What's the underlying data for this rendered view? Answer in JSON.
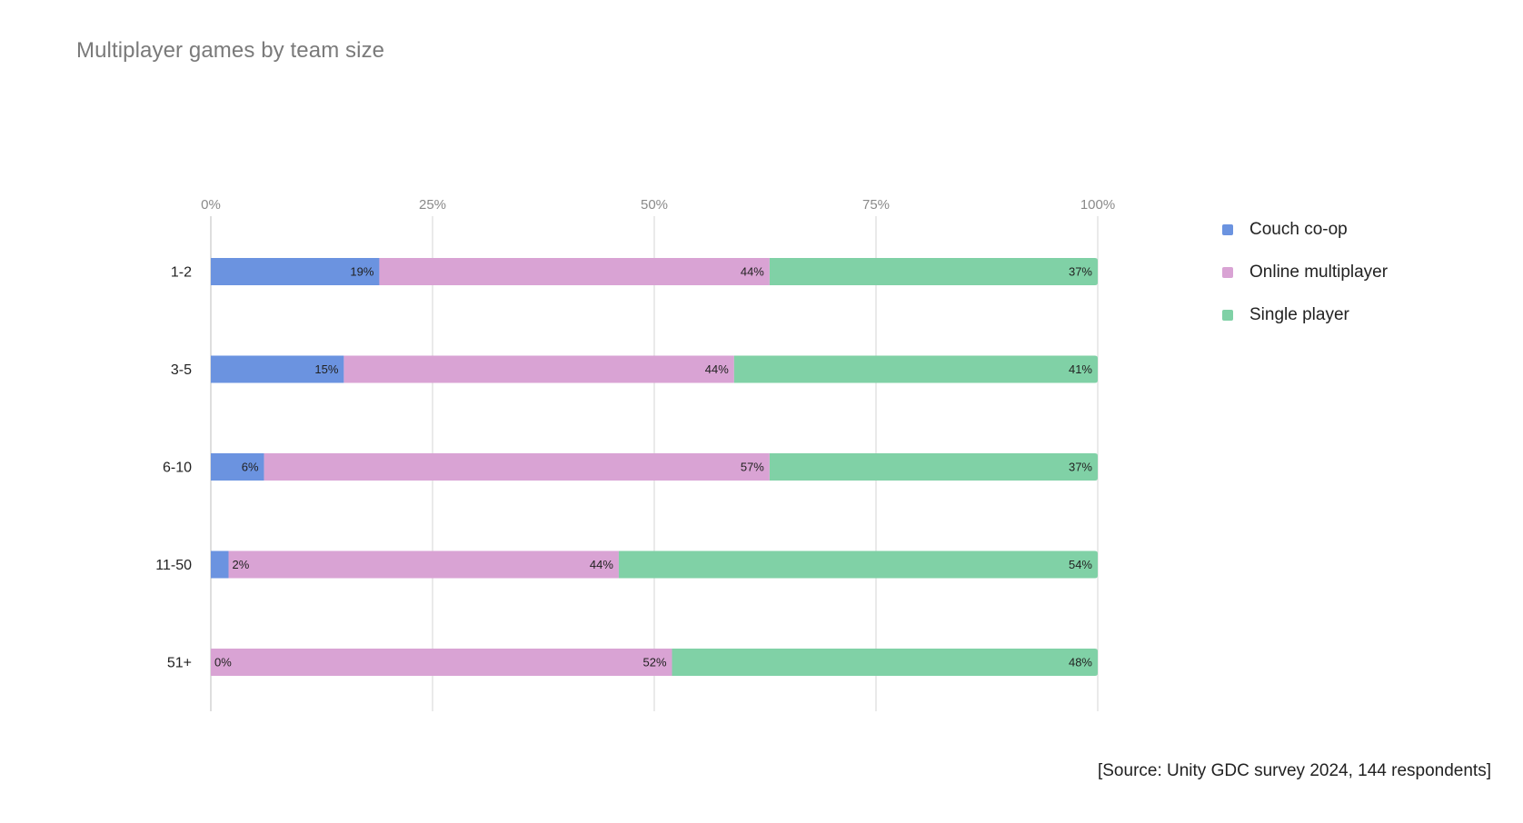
{
  "chart_data": {
    "type": "bar",
    "orientation": "horizontal",
    "stacked": true,
    "title": "Multiplayer games by team size",
    "categories": [
      "1-2",
      "3-5",
      "6-10",
      "11-50",
      "51+"
    ],
    "series": [
      {
        "name": "Couch co-op",
        "color": "#6b93e0",
        "values": [
          19,
          15,
          6,
          2,
          0
        ]
      },
      {
        "name": "Online multiplayer",
        "color": "#d9a3d4",
        "values": [
          44,
          44,
          57,
          44,
          52
        ]
      },
      {
        "name": "Single player",
        "color": "#80d1a6",
        "values": [
          37,
          41,
          37,
          54,
          48
        ]
      }
    ],
    "data_labels": [
      [
        "19%",
        "44%",
        "37%"
      ],
      [
        "15%",
        "44%",
        "41%"
      ],
      [
        "6%",
        "57%",
        "37%"
      ],
      [
        "2%",
        "44%",
        "54%"
      ],
      [
        "0%",
        "52%",
        "48%"
      ]
    ],
    "xlim": [
      0,
      100
    ],
    "xticks": [
      0,
      25,
      50,
      75,
      100
    ],
    "xtick_labels": [
      "0%",
      "25%",
      "50%",
      "75%",
      "100%"
    ],
    "axis_position": "top",
    "grid": true,
    "legend_position": "right"
  },
  "source_note": "[Source: Unity GDC survey 2024, 144 respondents]"
}
